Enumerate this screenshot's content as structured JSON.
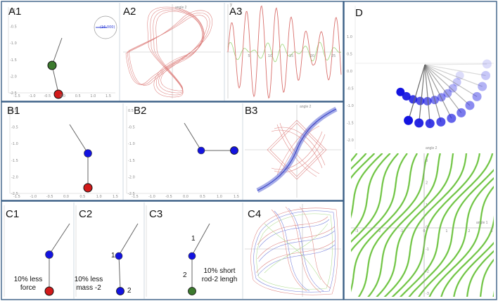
{
  "colors": {
    "frame": "#3a5f86",
    "red_bob": "#d21a1a",
    "green_bob": "#3c7a2e",
    "blue_bob": "#1313e0",
    "rod": "#666666",
    "trace_red": "#d9706d",
    "trace_blue": "#5e6ad6",
    "trace_green": "#9ed67a",
    "field_green": "#79d14a"
  },
  "panels": {
    "A1": {
      "label": "A1",
      "dial_value": "(16.000)"
    },
    "A2": {
      "label": "A2",
      "axis_title": "angle 2"
    },
    "A3": {
      "label": "A3",
      "axis_title": "y"
    },
    "B1": {
      "label": "B1"
    },
    "B2": {
      "label": "B2"
    },
    "B3": {
      "label": "B3",
      "axis_title": "angle 2"
    },
    "C1": {
      "label": "C1",
      "note": [
        "10% less",
        "force"
      ]
    },
    "C2": {
      "label": "C2",
      "note": [
        "10% less",
        "mass -2"
      ],
      "num_1": "1",
      "num_2": "2"
    },
    "C3": {
      "label": "C3",
      "note": [
        "10% short",
        "rod-2 lengh"
      ],
      "num_1": "1",
      "num_2": "2"
    },
    "C4": {
      "label": "C4"
    },
    "D": {
      "label": "D",
      "axis_title": "angle 2",
      "x_axis_title": "angle 1"
    }
  },
  "ticks": {
    "pend_x": [
      "-1.5",
      "-1.0",
      "-0.5",
      "0.0",
      "0.5",
      "1.0",
      "1.5"
    ],
    "pend_y": [
      "0.5",
      "-0.5",
      "-1.0",
      "-1.5",
      "-2.0",
      "-2.5"
    ],
    "a3_x": [
      "5",
      "10",
      "15",
      "20",
      "25"
    ],
    "d_y": [
      "1.0",
      "0.5",
      "0.0",
      "-0.5",
      "-1.0",
      "-1.5",
      "-2.0"
    ],
    "d_field_x": [
      "-3",
      "-2",
      "-1",
      "0",
      "1",
      "2",
      "3"
    ],
    "d_field_y": [
      "3",
      "2",
      "1",
      "0",
      "-1",
      "-2",
      "-3"
    ]
  }
}
